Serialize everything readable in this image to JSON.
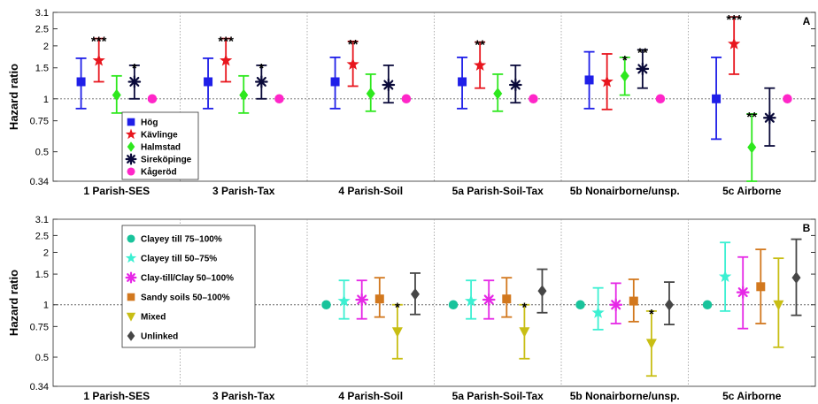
{
  "chart_data": [
    {
      "type": "scatter",
      "panel_label": "A",
      "ylabel": "Hazard ratio",
      "yscale": "log",
      "ylim": [
        0.34,
        3.1
      ],
      "yticks": [
        "0.34",
        "0.5",
        "0.75",
        "1",
        "1.5",
        "2",
        "2.5",
        "3.1"
      ],
      "reference_line": 1,
      "grid": "vertical dotted separators between categories",
      "legend_position": "lower-left",
      "categories": [
        "1 Parish-SES",
        "3 Parish-Tax",
        "4 Parish-Soil",
        "5a Parish-Soil-Tax",
        "5b Nonairborne/unsp.",
        "5c Airborne"
      ],
      "series": [
        {
          "name": "Hög",
          "color": "#1f1fe8",
          "marker": "square",
          "values": [
            1.25,
            1.25,
            1.25,
            1.25,
            1.28,
            1.0
          ],
          "lower": [
            0.88,
            0.88,
            0.88,
            0.88,
            0.88,
            0.59
          ],
          "upper": [
            1.7,
            1.7,
            1.72,
            1.72,
            1.85,
            1.72
          ],
          "annotations": [
            "",
            "",
            "",
            "",
            "",
            ""
          ]
        },
        {
          "name": "Kävlinge",
          "color": "#e8161e",
          "marker": "star",
          "values": [
            1.65,
            1.65,
            1.57,
            1.55,
            1.25,
            2.05
          ],
          "lower": [
            1.25,
            1.25,
            1.18,
            1.15,
            0.87,
            1.38
          ],
          "upper": [
            2.2,
            2.2,
            2.12,
            2.1,
            1.8,
            2.92
          ],
          "annotations": [
            "***",
            "***",
            "**",
            "**",
            "",
            "***"
          ]
        },
        {
          "name": "Halmstad",
          "color": "#2ee81e",
          "marker": "diamond",
          "values": [
            1.05,
            1.05,
            1.07,
            1.07,
            1.35,
            0.53
          ],
          "lower": [
            0.83,
            0.83,
            0.85,
            0.85,
            1.05,
            0.34
          ],
          "upper": [
            1.35,
            1.35,
            1.38,
            1.38,
            1.72,
            0.82
          ],
          "annotations": [
            "",
            "",
            "",
            "",
            "*",
            "**"
          ]
        },
        {
          "name": "Sireköpinge",
          "color": "#0a0a3a",
          "marker": "asterisk",
          "values": [
            1.25,
            1.25,
            1.2,
            1.2,
            1.48,
            0.78
          ],
          "lower": [
            1.0,
            1.0,
            0.95,
            0.95,
            1.15,
            0.54
          ],
          "upper": [
            1.55,
            1.55,
            1.55,
            1.55,
            1.9,
            1.15
          ],
          "annotations": [
            "*",
            "*",
            "",
            "",
            "**",
            ""
          ]
        },
        {
          "name": "Kågeröd",
          "color": "#ff26c8",
          "marker": "circle",
          "values": [
            1,
            1,
            1,
            1,
            1,
            1
          ],
          "lower": [
            null,
            null,
            null,
            null,
            null,
            null
          ],
          "upper": [
            null,
            null,
            null,
            null,
            null,
            null
          ],
          "annotations": [
            "",
            "",
            "",
            "",
            "",
            ""
          ]
        }
      ]
    },
    {
      "type": "scatter",
      "panel_label": "B",
      "ylabel": "Hazard ratio",
      "yscale": "log",
      "ylim": [
        0.34,
        3.1
      ],
      "yticks": [
        "0.34",
        "0.5",
        "0.75",
        "1",
        "1.5",
        "2",
        "2.5",
        "3.1"
      ],
      "reference_line": 1,
      "grid": "vertical dotted separators between categories",
      "legend_position": "upper-left",
      "categories": [
        "1 Parish-SES",
        "3 Parish-Tax",
        "4 Parish-Soil",
        "5a Parish-Soil-Tax",
        "5b Nonairborne/unsp.",
        "5c Airborne"
      ],
      "series": [
        {
          "name": "Clayey till 75–100%",
          "color": "#19c39b",
          "marker": "circle",
          "values": [
            null,
            null,
            1,
            1,
            1,
            1
          ],
          "lower": [
            null,
            null,
            null,
            null,
            null,
            null
          ],
          "upper": [
            null,
            null,
            null,
            null,
            null,
            null
          ],
          "annotations": [
            "",
            "",
            "",
            "",
            "",
            ""
          ]
        },
        {
          "name": "Clayey till 50–75%",
          "color": "#3cf0d2",
          "marker": "star",
          "values": [
            null,
            null,
            1.05,
            1.05,
            0.9,
            1.45
          ],
          "lower": [
            null,
            null,
            0.83,
            0.83,
            0.72,
            0.92
          ],
          "upper": [
            null,
            null,
            1.38,
            1.38,
            1.25,
            2.28
          ],
          "annotations": [
            "",
            "",
            "",
            "",
            "",
            ""
          ]
        },
        {
          "name": "Clay-till/Clay 50–100%",
          "color": "#e628e6",
          "marker": "asterisk",
          "values": [
            null,
            null,
            1.07,
            1.07,
            1.0,
            1.18
          ],
          "lower": [
            null,
            null,
            0.83,
            0.83,
            0.78,
            0.73
          ],
          "upper": [
            null,
            null,
            1.38,
            1.38,
            1.33,
            1.88
          ],
          "annotations": [
            "",
            "",
            "",
            "",
            "",
            ""
          ]
        },
        {
          "name": "Sandy soils 50–100%",
          "color": "#d2781e",
          "marker": "square",
          "values": [
            null,
            null,
            1.08,
            1.08,
            1.05,
            1.27
          ],
          "lower": [
            null,
            null,
            0.85,
            0.85,
            0.8,
            0.78
          ],
          "upper": [
            null,
            null,
            1.43,
            1.43,
            1.4,
            2.08
          ],
          "annotations": [
            "",
            "",
            "",
            "",
            "",
            ""
          ]
        },
        {
          "name": "Mixed",
          "color": "#c8be14",
          "marker": "triangle-down",
          "values": [
            null,
            null,
            0.7,
            0.7,
            0.6,
            1.0
          ],
          "lower": [
            null,
            null,
            0.49,
            0.49,
            0.39,
            0.57
          ],
          "upper": [
            null,
            null,
            1.0,
            1.0,
            0.92,
            1.85
          ],
          "annotations": [
            "",
            "",
            "*",
            "*",
            "*",
            ""
          ]
        },
        {
          "name": "Unlinked",
          "color": "#464646",
          "marker": "diamond",
          "values": [
            null,
            null,
            1.15,
            1.2,
            1.0,
            1.43
          ],
          "lower": [
            null,
            null,
            0.88,
            0.9,
            0.77,
            0.87
          ],
          "upper": [
            null,
            null,
            1.52,
            1.6,
            1.35,
            2.38
          ],
          "annotations": [
            "",
            "",
            "",
            "",
            "",
            ""
          ]
        }
      ]
    }
  ]
}
